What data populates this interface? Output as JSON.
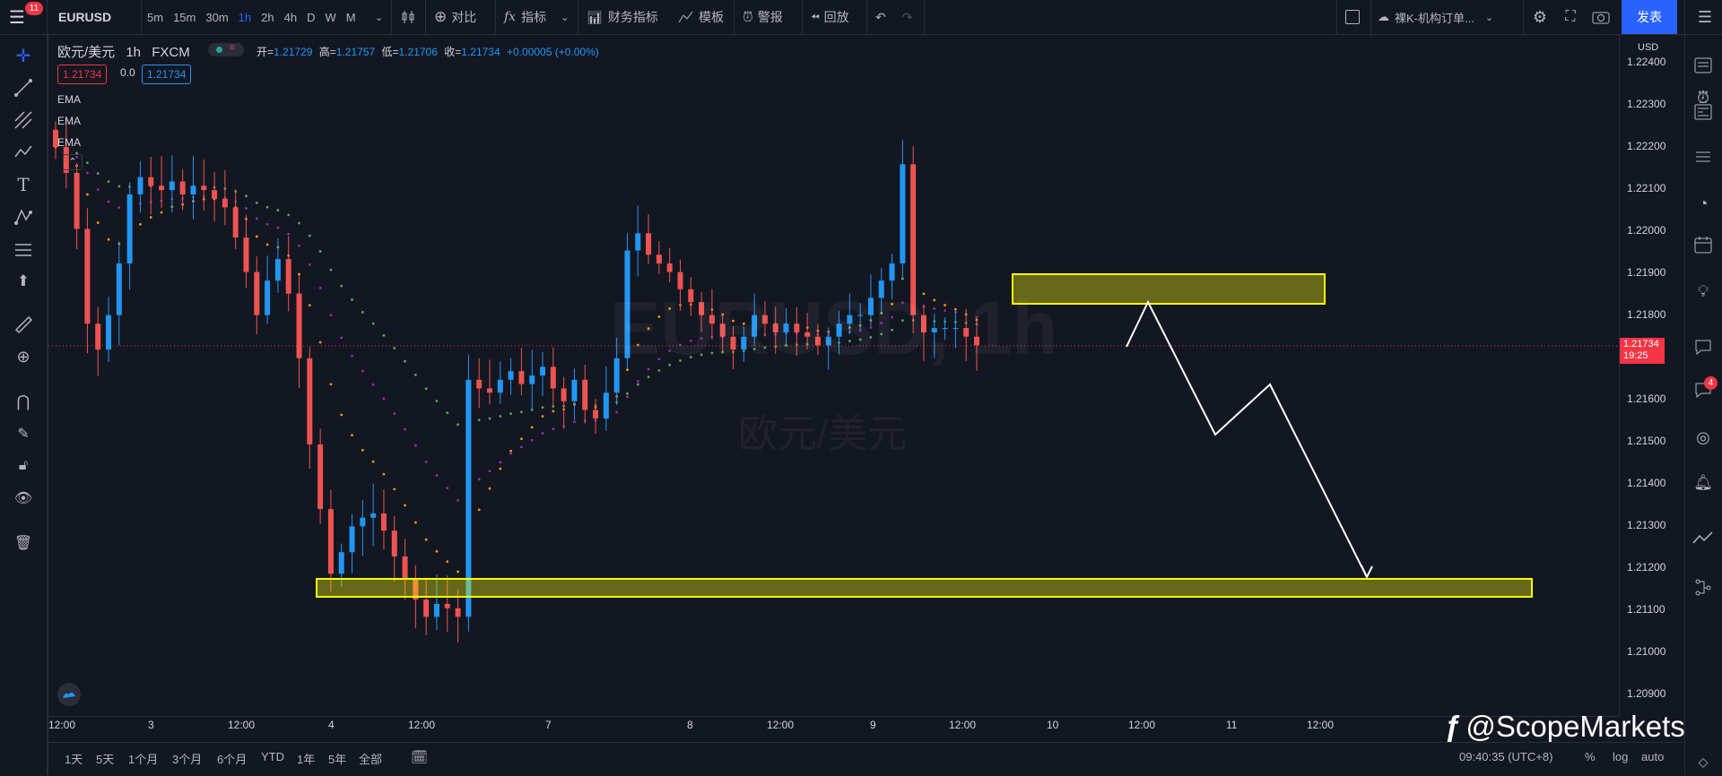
{
  "toolbar": {
    "menu_badge": "11",
    "symbol": "EURUSD",
    "intervals": [
      "5m",
      "15m",
      "30m",
      "1h",
      "2h",
      "4h",
      "D",
      "W",
      "M"
    ],
    "active_interval": "1h",
    "compare_label": "对比",
    "indicators_label": "指标",
    "financials_label": "财务指标",
    "templates_label": "模板",
    "alert_label": "警报",
    "replay_label": "回放",
    "layout_name": "裸K-机构订单...",
    "publish_label": "发表"
  },
  "legend": {
    "pair": "欧元/美元",
    "interval": "1h",
    "source": "FXCM",
    "open_label": "开=",
    "open": "1.21729",
    "high_label": "高=",
    "high": "1.21757",
    "low_label": "低=",
    "low": "1.21706",
    "close_label": "收=",
    "close": "1.21734",
    "change": "+0.00005 (+0.00%)",
    "bid": "1.21734",
    "spread": "0.0",
    "ask": "1.21734",
    "indicators": [
      "EMA",
      "EMA",
      "EMA"
    ]
  },
  "watermark": {
    "symbol": "EURUSD, 1h",
    "name": "欧元/美元"
  },
  "price_axis": {
    "currency": "USD",
    "labels": [
      "1.22400",
      "1.22300",
      "1.22200",
      "1.22100",
      "1.22000",
      "1.21900",
      "1.21800",
      "1.21600",
      "1.21500",
      "1.21400",
      "1.21300",
      "1.21200",
      "1.21100",
      "1.21000",
      "1.20900"
    ],
    "current_price": "1.21734",
    "countdown": "19:25"
  },
  "time_axis": {
    "labels": [
      "12:00",
      "3",
      "12:00",
      "4",
      "12:00",
      "7",
      "8",
      "12:00",
      "9",
      "12:00",
      "10",
      "12:00",
      "11",
      "12:00"
    ]
  },
  "bottom": {
    "ranges": [
      "1天",
      "5天",
      "1个月",
      "3个月",
      "6个月",
      "YTD",
      "1年",
      "5年",
      "全部"
    ],
    "clock": "09:40:35 (UTC+8)",
    "percent": "%",
    "log": "log",
    "auto": "auto"
  },
  "watermark_brand": "@ScopeMarkets",
  "right_badge": "4",
  "colors": {
    "background": "#131722",
    "bull": "#2196f3",
    "bear": "#ef5350",
    "zone": "#ffff00",
    "ema_fast": "#4caf50",
    "ema_mid": "#9c27b0",
    "ema_slow": "#ff9800"
  },
  "chart_data": {
    "type": "candlestick",
    "symbol": "EURUSD",
    "interval": "1h",
    "ylim": [
      1.2087,
      1.2245
    ],
    "resistance_zone": [
      1.2183,
      1.219
    ],
    "support_zone": [
      1.2113,
      1.2118
    ],
    "projection_path": [
      1.2173,
      1.2183,
      1.2152,
      1.2164,
      1.2118
    ],
    "closes": [
      1.2219,
      1.2213,
      1.22,
      1.2178,
      1.2172,
      1.218,
      1.2192,
      1.2208,
      1.2212,
      1.221,
      1.2209,
      1.2211,
      1.2208,
      1.221,
      1.2209,
      1.2207,
      1.2205,
      1.2198,
      1.219,
      1.218,
      1.2188,
      1.2193,
      1.2185,
      1.217,
      1.215,
      1.2135,
      1.212,
      1.2125,
      1.2131,
      1.2133,
      1.2134,
      1.213,
      1.2124,
      1.2119,
      1.2114,
      1.211,
      1.2113,
      1.2112,
      1.211,
      1.2165,
      1.2163,
      1.2162,
      1.2165,
      1.2167,
      1.2164,
      1.2166,
      1.2168,
      1.2163,
      1.216,
      1.2165,
      1.2158,
      1.2156,
      1.2162,
      1.217,
      1.2195,
      1.2199,
      1.2194,
      1.2192,
      1.219,
      1.2186,
      1.2183,
      1.218,
      1.2178,
      1.2175,
      1.2172,
      1.2175,
      1.218,
      1.2178,
      1.2176,
      1.2178,
      1.2176,
      1.2175,
      1.2173,
      1.2175,
      1.2178,
      1.218,
      1.218,
      1.2184,
      1.2188,
      1.2192,
      1.2215,
      1.218,
      1.2176,
      1.2177,
      1.2177,
      1.2177,
      1.2175,
      1.2173
    ],
    "ema_series": [
      "green",
      "purple",
      "orange"
    ]
  }
}
